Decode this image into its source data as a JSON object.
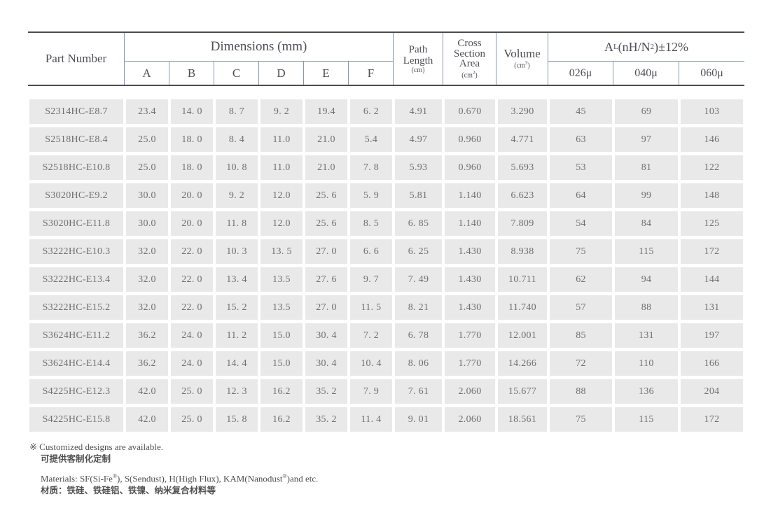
{
  "colors": {
    "rule_dark": "#4c4c4c",
    "rule_blue": "#8696b4",
    "cell_bg": "#e9e9e9",
    "header_text": "#4e4e55",
    "cell_text": "#6f6f6f"
  },
  "table": {
    "header": {
      "part_number": "Part Number",
      "dimensions": "Dimensions (mm)",
      "dim_cols": [
        "A",
        "B",
        "C",
        "D",
        "E",
        "F"
      ],
      "path_length": {
        "line1": "Path",
        "line2": "Length",
        "unit": "(cm)"
      },
      "cross_section": {
        "line1": "Cross",
        "line2": "Section",
        "line3": "Area",
        "unit_pre": "(cm",
        "unit_sup": "2",
        "unit_post": ")"
      },
      "volume": {
        "label": "Volume",
        "unit_pre": "(cm",
        "unit_sup": "3",
        "unit_post": ")"
      },
      "al": {
        "pre": "A",
        "sub": "L",
        "mid": "(nH/N",
        "sup": "2",
        "post": ")±12%"
      },
      "al_cols": [
        "026μ",
        "040μ",
        "060μ"
      ]
    },
    "rows": [
      {
        "part": "S2314HC-E8.7",
        "a": "23.4",
        "b": "14. 0",
        "c": "8. 7",
        "d": "9. 2",
        "e": "19.4",
        "f": "6. 2",
        "path": "4.91",
        "cross": "0.670",
        "volume": "3.290",
        "u026": "45",
        "u040": "69",
        "u060": "103"
      },
      {
        "part": "S2518HC-E8.4",
        "a": "25.0",
        "b": "18. 0",
        "c": "8. 4",
        "d": "11.0",
        "e": "21.0",
        "f": "5.4",
        "path": "4.97",
        "cross": "0.960",
        "volume": "4.771",
        "u026": "63",
        "u040": "97",
        "u060": "146"
      },
      {
        "part": "S2518HC-E10.8",
        "a": "25.0",
        "b": "18. 0",
        "c": "10. 8",
        "d": "11.0",
        "e": "21.0",
        "f": "7. 8",
        "path": "5.93",
        "cross": "0.960",
        "volume": "5.693",
        "u026": "53",
        "u040": "81",
        "u060": "122"
      },
      {
        "part": "S3020HC-E9.2",
        "a": "30.0",
        "b": "20. 0",
        "c": "9. 2",
        "d": "12.0",
        "e": "25. 6",
        "f": "5. 9",
        "path": "5.81",
        "cross": "1.140",
        "volume": "6.623",
        "u026": "64",
        "u040": "99",
        "u060": "148"
      },
      {
        "part": "S3020HC-E11.8",
        "a": "30.0",
        "b": "20. 0",
        "c": "11. 8",
        "d": "12.0",
        "e": "25. 6",
        "f": "8. 5",
        "path": "6. 85",
        "cross": "1.140",
        "volume": "7.809",
        "u026": "54",
        "u040": "84",
        "u060": "125"
      },
      {
        "part": "S3222HC-E10.3",
        "a": "32.0",
        "b": "22. 0",
        "c": "10. 3",
        "d": "13. 5",
        "e": "27. 0",
        "f": "6. 6",
        "path": "6. 25",
        "cross": "1.430",
        "volume": "8.938",
        "u026": "75",
        "u040": "115",
        "u060": "172"
      },
      {
        "part": "S3222HC-E13.4",
        "a": "32.0",
        "b": "22. 0",
        "c": "13. 4",
        "d": "13.5",
        "e": "27. 6",
        "f": "9. 7",
        "path": "7. 49",
        "cross": "1.430",
        "volume": "10.711",
        "u026": "62",
        "u040": "94",
        "u060": "144"
      },
      {
        "part": "S3222HC-E15.2",
        "a": "32.0",
        "b": "22. 0",
        "c": "15. 2",
        "d": "13.5",
        "e": "27. 0",
        "f": "11. 5",
        "path": "8. 21",
        "cross": "1.430",
        "volume": "11.740",
        "u026": "57",
        "u040": "88",
        "u060": "131"
      },
      {
        "part": "S3624HC-E11.2",
        "a": "36.2",
        "b": "24. 0",
        "c": "11. 2",
        "d": "15.0",
        "e": "30. 4",
        "f": "7. 2",
        "path": "6. 78",
        "cross": "1.770",
        "volume": "12.001",
        "u026": "85",
        "u040": "131",
        "u060": "197"
      },
      {
        "part": "S3624HC-E14.4",
        "a": "36.2",
        "b": "24. 0",
        "c": "14. 4",
        "d": "15.0",
        "e": "30. 4",
        "f": "10. 4",
        "path": "8. 06",
        "cross": "1.770",
        "volume": "14.266",
        "u026": "72",
        "u040": "110",
        "u060": "166"
      },
      {
        "part": "S4225HC-E12.3",
        "a": "42.0",
        "b": "25. 0",
        "c": "12. 3",
        "d": "16.2",
        "e": "35. 2",
        "f": "7. 9",
        "path": "7. 61",
        "cross": "2.060",
        "volume": "15.677",
        "u026": "88",
        "u040": "136",
        "u060": "204"
      },
      {
        "part": "S4225HC-E15.8",
        "a": "42.0",
        "b": "25. 0",
        "c": "15. 8",
        "d": "16.2",
        "e": "35. 2",
        "f": "11. 4",
        "path": "9. 01",
        "cross": "2.060",
        "volume": "18.561",
        "u026": "75",
        "u040": "115",
        "u060": "172"
      }
    ]
  },
  "notes": {
    "custom_en": "※ Customized designs are available.",
    "custom_cn": "可提供客制化定制",
    "materials_pre": "Materials: SF(Si-Fe",
    "materials_reg1": "®",
    "materials_mid": "), S(Sendust), H(High Flux), KAM(Nanodust",
    "materials_reg2": "®",
    "materials_post": ")and etc.",
    "materials_cn": "材质：铁硅、铁硅铝、铁镍、纳米复合材料等"
  }
}
